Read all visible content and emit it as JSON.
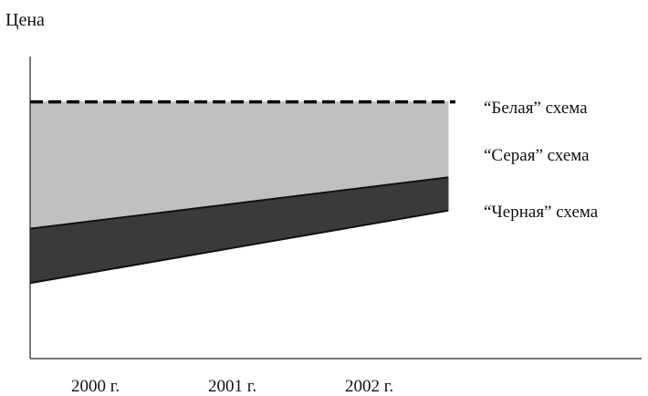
{
  "chart_data": {
    "type": "area",
    "title": "",
    "xlabel": "",
    "ylabel": "Цена",
    "categories": [
      "2000 г.",
      "2001 г.",
      "2002 г."
    ],
    "x_span": [
      "2000 г.",
      "2002 г."
    ],
    "ylim": [
      0,
      100
    ],
    "grid": false,
    "legend_placement": "right",
    "series": [
      {
        "name": "“Белая” схема",
        "style": "dashed-line",
        "color": "#000000",
        "start": 85,
        "end": 85
      },
      {
        "name": "“Серая” схема",
        "style": "band",
        "color": "#c0c0c0",
        "lower_start": 43,
        "lower_end": 60,
        "upper_start": 85,
        "upper_end": 85
      },
      {
        "name": "“Черная” схема",
        "style": "band",
        "color": "#3a3a3a",
        "lower_start": 25,
        "lower_end": 49,
        "upper_start": 43,
        "upper_end": 60
      }
    ]
  }
}
